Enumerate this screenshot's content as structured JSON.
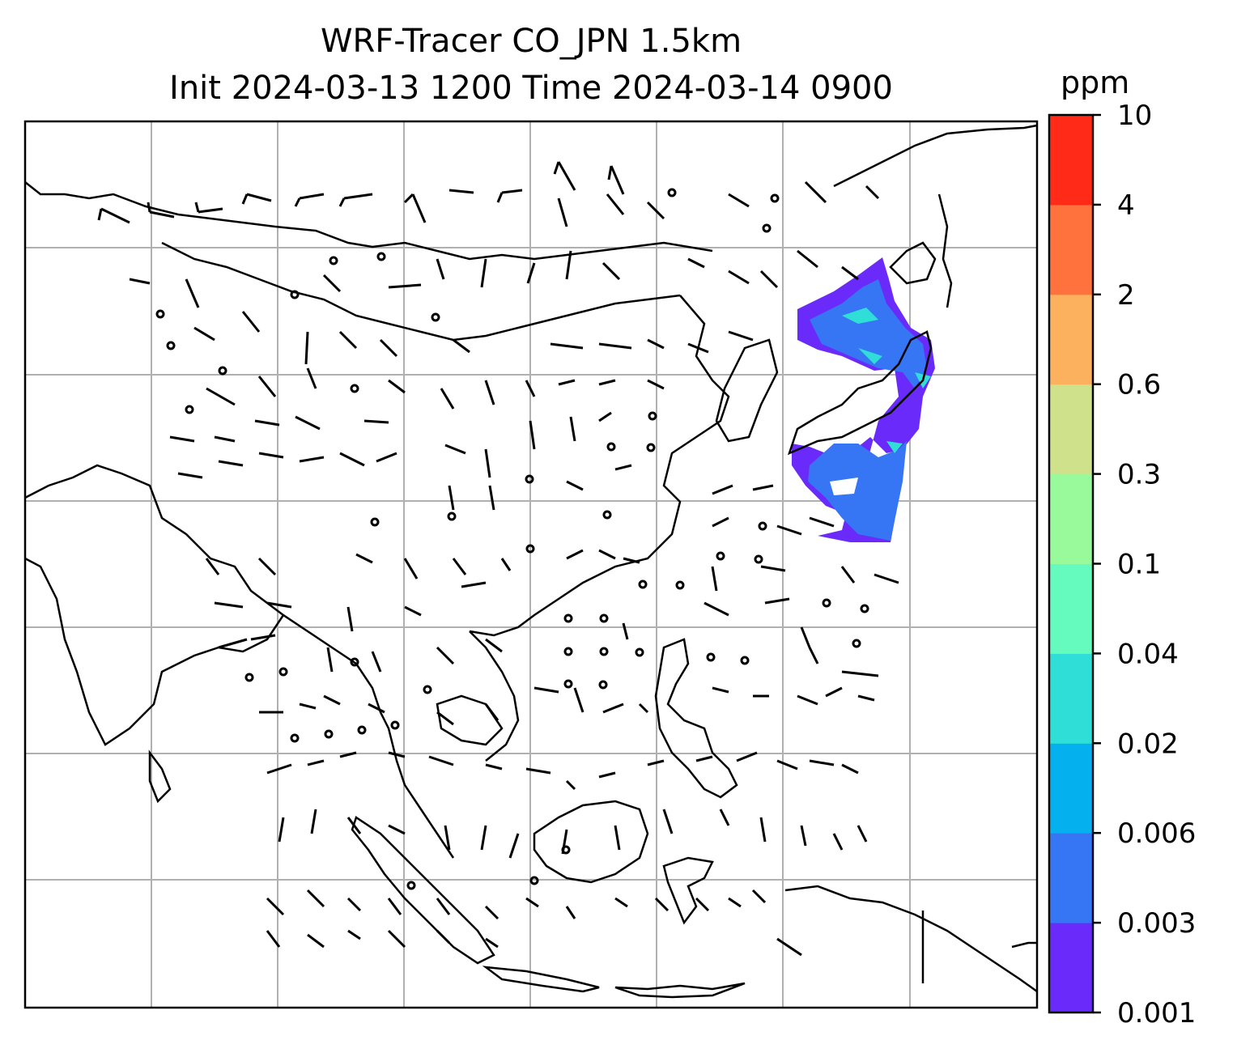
{
  "title_line1": "WRF-Tracer CO_JPN 1.5km",
  "title_line2": "Init 2024-03-13 1200 Time 2024-03-14 0900",
  "colorbar": {
    "unit": "ppm",
    "levels": [
      "0.001",
      "0.003",
      "0.006",
      "0.02",
      "0.04",
      "0.1",
      "0.3",
      "0.6",
      "2",
      "4",
      "10"
    ],
    "colors": [
      "#6a2bfa",
      "#3675f3",
      "#04b0ee",
      "#2fdfd7",
      "#65fbbe",
      "#99fa9b",
      "#cfe18a",
      "#fcb15f",
      "#ff713d",
      "#ff2a18"
    ]
  },
  "map": {
    "gridlines": true,
    "features": [
      "coastlines",
      "country-borders",
      "wind-barbs",
      "co-tracer-plume"
    ],
    "plume_region": "Japan"
  }
}
